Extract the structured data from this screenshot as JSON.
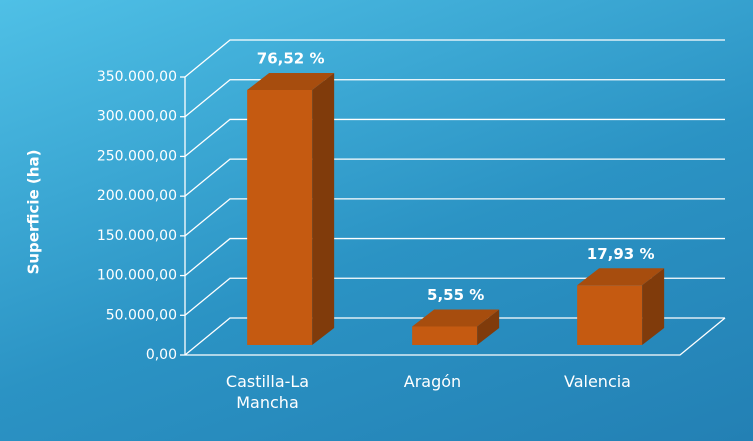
{
  "chart_data": {
    "type": "bar3d",
    "y_label": "Superficie (ha)",
    "categories": [
      "Castilla-La Mancha",
      "Aragón",
      "Valencia"
    ],
    "values": [
      321000,
      23300,
      75200
    ],
    "annotations": [
      "76,52 %",
      "5,55 %",
      "17,93 %"
    ],
    "color": "#c55a11",
    "ylim": [
      0,
      350000
    ],
    "yticks": [
      {
        "value": 0,
        "label": "0,00"
      },
      {
        "value": 50000,
        "label": "50.000,00"
      },
      {
        "value": 100000,
        "label": "100.000,00"
      },
      {
        "value": 150000,
        "label": "150.000,00"
      },
      {
        "value": 200000,
        "label": "200.000,00"
      },
      {
        "value": 250000,
        "label": "250.000,00"
      },
      {
        "value": 300000,
        "label": "300.000,00"
      },
      {
        "value": 350000,
        "label": "350.000,00"
      }
    ],
    "grid": true
  }
}
